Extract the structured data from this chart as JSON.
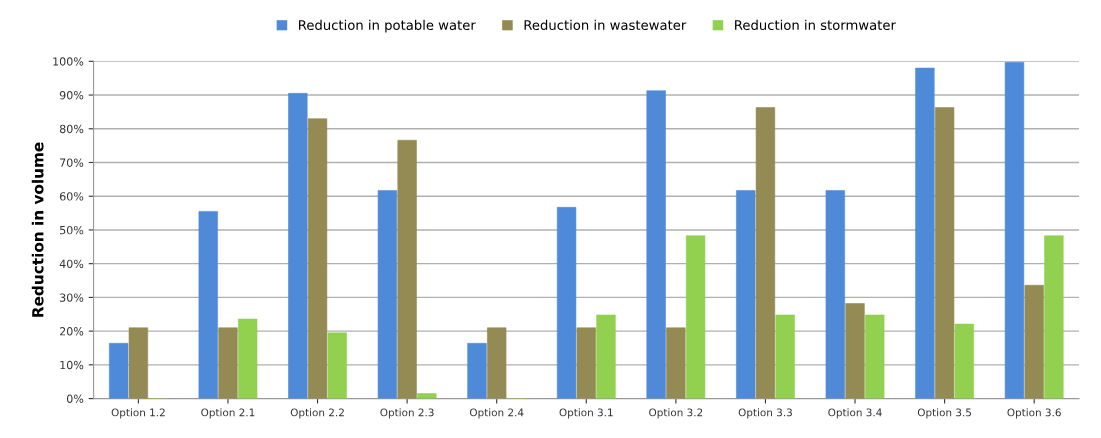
{
  "chart_data": {
    "type": "bar",
    "ylabel": "Reduction in volume",
    "categories": [
      "Option 1.2",
      "Option 2.1",
      "Option 2.2",
      "Option 2.3",
      "Option 2.4",
      "Option 3.1",
      "Option 3.2",
      "Option 3.3",
      "Option 3.4",
      "Option 3.5",
      "Option 3.6"
    ],
    "series": [
      {
        "name": "Reduction in potable water",
        "color": "#4f8ad8",
        "values": [
          16.4,
          55.5,
          90.5,
          61.7,
          16.4,
          56.7,
          91.3,
          61.7,
          61.7,
          98,
          99.7
        ]
      },
      {
        "name": "Reduction in wastewater",
        "color": "#948a54",
        "values": [
          21,
          21,
          83,
          76.6,
          21,
          21,
          21,
          86.3,
          28.2,
          86.3,
          33.6
        ]
      },
      {
        "name": "Reduction in stormwater",
        "color": "#92d050",
        "values": [
          0,
          23.6,
          19.5,
          1.5,
          0,
          24.8,
          48.3,
          24.8,
          24.8,
          22.1,
          48.3
        ]
      }
    ],
    "ylim": [
      0,
      100
    ],
    "yticks": [
      {
        "value": 0,
        "label": "0%"
      },
      {
        "value": 10,
        "label": "10%"
      },
      {
        "value": 20,
        "label": "20%"
      },
      {
        "value": 30,
        "label": "30%"
      },
      {
        "value": 40,
        "label": "40%"
      },
      {
        "value": 50,
        "label": "50%"
      },
      {
        "value": 60,
        "label": "60%"
      },
      {
        "value": 70,
        "label": "70%"
      },
      {
        "value": 80,
        "label": "80%"
      },
      {
        "value": 90,
        "label": "90%"
      },
      {
        "value": 100,
        "label": "100%"
      }
    ],
    "grid": "y",
    "legend": "top"
  }
}
